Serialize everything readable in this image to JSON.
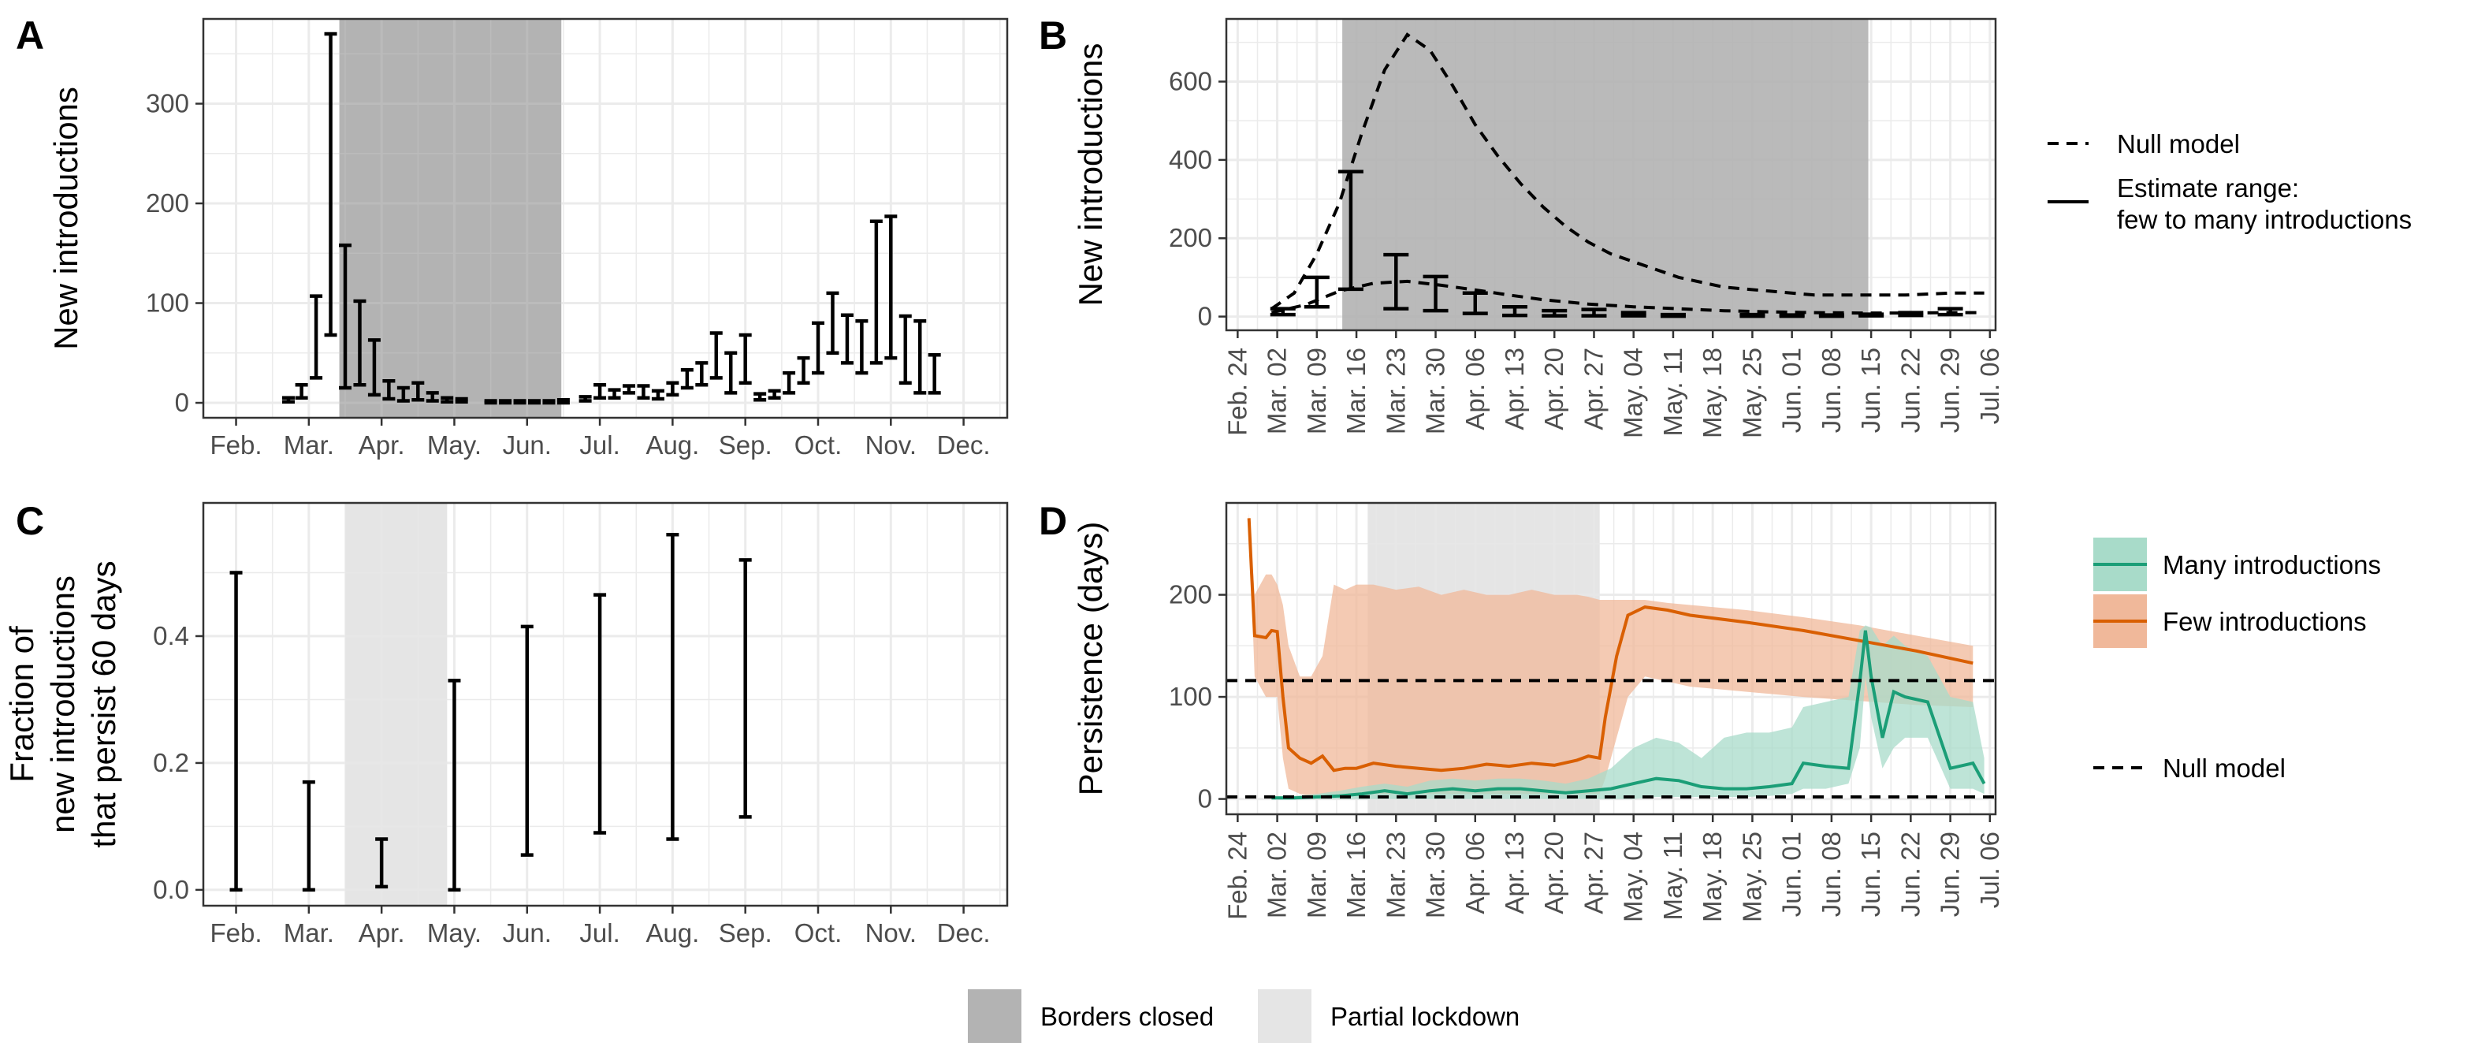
{
  "colors": {
    "borders_closed": "#b3b3b3",
    "partial_lockdown": "#e5e5e5",
    "many": "#1b9e77",
    "few": "#d95f02",
    "many_band": "#a8dbc9",
    "few_band": "#f0b89a",
    "grid": "#ebebeb",
    "ink": "#000000"
  },
  "panels": {
    "A": {
      "letter": "A"
    },
    "B": {
      "letter": "B"
    },
    "C": {
      "letter": "C"
    },
    "D": {
      "letter": "D"
    }
  },
  "legend_top": {
    "null_model": "Null model",
    "estimate_line1": "Estimate range:",
    "estimate_line2": "few to many introductions"
  },
  "legend_mid": {
    "many": "Many introductions",
    "few": "Few introductions",
    "null_model": "Null model"
  },
  "legend_bottom": {
    "borders_closed": "Borders closed",
    "partial_lockdown": "Partial lockdown"
  },
  "chart_data": [
    {
      "panel": "A",
      "type": "errorbar",
      "ylabel": "New introductions",
      "xlabel": "",
      "month_ticks": [
        "Feb.",
        "Mar.",
        "Apr.",
        "May.",
        "Jun.",
        "Jul.",
        "Aug.",
        "Sep.",
        "Oct.",
        "Nov.",
        "Dec."
      ],
      "y_ticks": [
        0,
        100,
        200,
        300
      ],
      "xlim_month": [
        0.55,
        11.6
      ],
      "ylim": [
        -15,
        385
      ],
      "grid": true,
      "shaded": [
        {
          "type": "borders_closed",
          "from": 2.42,
          "to": 5.47
        }
      ],
      "ranges": [
        [
          1.72,
          1,
          5
        ],
        [
          1.9,
          5,
          18
        ],
        [
          2.1,
          25,
          107
        ],
        [
          2.3,
          68,
          370
        ],
        [
          2.5,
          15,
          158
        ],
        [
          2.7,
          18,
          102
        ],
        [
          2.9,
          8,
          63
        ],
        [
          3.1,
          4,
          22
        ],
        [
          3.3,
          2,
          15
        ],
        [
          3.5,
          3,
          20
        ],
        [
          3.7,
          2,
          10
        ],
        [
          3.9,
          1,
          5
        ],
        [
          4.1,
          1,
          4
        ],
        [
          4.5,
          0,
          2
        ],
        [
          4.7,
          0,
          2
        ],
        [
          4.9,
          0,
          2
        ],
        [
          5.1,
          0,
          2
        ],
        [
          5.3,
          0,
          2
        ],
        [
          5.5,
          0,
          3
        ],
        [
          5.8,
          2,
          6
        ],
        [
          6.0,
          5,
          18
        ],
        [
          6.2,
          5,
          13
        ],
        [
          6.4,
          10,
          17
        ],
        [
          6.6,
          5,
          17
        ],
        [
          6.8,
          4,
          12
        ],
        [
          7.0,
          8,
          20
        ],
        [
          7.2,
          15,
          33
        ],
        [
          7.4,
          18,
          40
        ],
        [
          7.6,
          25,
          70
        ],
        [
          7.8,
          10,
          50
        ],
        [
          8.0,
          20,
          68
        ],
        [
          8.2,
          3,
          9
        ],
        [
          8.4,
          5,
          12
        ],
        [
          8.6,
          10,
          30
        ],
        [
          8.8,
          20,
          45
        ],
        [
          9.0,
          30,
          80
        ],
        [
          9.2,
          50,
          110
        ],
        [
          9.4,
          40,
          88
        ],
        [
          9.6,
          30,
          82
        ],
        [
          9.8,
          40,
          182
        ],
        [
          10.0,
          45,
          187
        ],
        [
          10.2,
          20,
          87
        ],
        [
          10.4,
          10,
          82
        ],
        [
          10.6,
          10,
          48
        ]
      ]
    },
    {
      "panel": "B",
      "type": "line+errorbar",
      "ylabel": "New introductions",
      "xlabel": "",
      "week_ticks": [
        "Feb. 24",
        "Mar. 02",
        "Mar. 09",
        "Mar. 16",
        "Mar. 23",
        "Mar. 30",
        "Apr. 06",
        "Apr. 13",
        "Apr. 20",
        "Apr. 27",
        "May. 04",
        "May. 11",
        "May. 18",
        "May. 25",
        "Jun. 01",
        "Jun. 08",
        "Jun. 15",
        "Jun. 22",
        "Jun. 29",
        "Jul. 06"
      ],
      "y_ticks": [
        0,
        200,
        400,
        600
      ],
      "xlim_day": [
        -2,
        134
      ],
      "ylim": [
        -35,
        760
      ],
      "grid": true,
      "shaded": [
        {
          "type": "borders_closed",
          "from": 18.5,
          "to": 111.5
        }
      ],
      "null_model_series": [
        {
          "name": "Null model",
          "day": [
            6,
            10,
            14,
            18,
            22,
            26,
            30,
            34,
            38,
            42,
            46,
            50,
            54,
            58,
            62,
            66,
            70,
            78,
            86,
            94,
            102,
            110,
            118,
            126,
            132
          ],
          "value": [
            20,
            60,
            160,
            290,
            470,
            630,
            720,
            680,
            590,
            490,
            410,
            340,
            280,
            230,
            190,
            160,
            140,
            100,
            75,
            65,
            55,
            55,
            55,
            60,
            60
          ]
        },
        {
          "name": "Null model",
          "day": [
            6,
            12,
            18,
            24,
            30,
            36,
            42,
            48,
            54,
            62,
            70,
            78,
            86,
            94,
            102,
            110,
            118,
            126,
            132
          ],
          "value": [
            10,
            30,
            65,
            85,
            90,
            80,
            68,
            55,
            43,
            32,
            25,
            20,
            15,
            12,
            10,
            9,
            9,
            10,
            10
          ]
        }
      ],
      "ranges": [
        [
          8,
          5,
          20
        ],
        [
          14,
          25,
          100
        ],
        [
          20,
          70,
          370
        ],
        [
          28,
          20,
          158
        ],
        [
          35,
          15,
          102
        ],
        [
          42,
          8,
          60
        ],
        [
          49,
          3,
          25
        ],
        [
          56,
          2,
          15
        ],
        [
          63,
          2,
          18
        ],
        [
          70,
          2,
          10
        ],
        [
          77,
          1,
          5
        ],
        [
          91,
          1,
          5
        ],
        [
          98,
          1,
          4
        ],
        [
          105,
          1,
          4
        ],
        [
          112,
          2,
          6
        ],
        [
          119,
          3,
          10
        ],
        [
          126,
          5,
          20
        ]
      ]
    },
    {
      "panel": "C",
      "type": "errorbar",
      "ylabel_lines": [
        "Fraction of",
        "new introductions",
        "that persist 60 days"
      ],
      "xlabel": "",
      "month_ticks": [
        "Feb.",
        "Mar.",
        "Apr.",
        "May.",
        "Jun.",
        "Jul.",
        "Aug.",
        "Sep.",
        "Oct.",
        "Nov.",
        "Dec."
      ],
      "y_ticks": [
        "0.0",
        "0.2",
        "0.4"
      ],
      "xlim_month": [
        0.55,
        11.6
      ],
      "ylim": [
        -0.025,
        0.61
      ],
      "grid": true,
      "shaded": [
        {
          "type": "partial_lockdown",
          "from": 2.5,
          "to": 3.9
        }
      ],
      "ranges": [
        [
          1,
          0.0,
          0.5
        ],
        [
          2,
          0.0,
          0.17
        ],
        [
          3,
          0.005,
          0.08
        ],
        [
          4,
          0.0,
          0.33
        ],
        [
          5,
          0.055,
          0.415
        ],
        [
          6,
          0.09,
          0.465
        ],
        [
          7,
          0.08,
          0.56
        ],
        [
          8,
          0.115,
          0.52
        ]
      ]
    },
    {
      "panel": "D",
      "type": "line+area",
      "ylabel": "Persistence (days)",
      "xlabel": "",
      "week_ticks": [
        "Feb. 24",
        "Mar. 02",
        "Mar. 09",
        "Mar. 16",
        "Mar. 23",
        "Mar. 30",
        "Apr. 06",
        "Apr. 13",
        "Apr. 20",
        "Apr. 27",
        "May. 04",
        "May. 11",
        "May. 18",
        "May. 25",
        "Jun. 01",
        "Jun. 08",
        "Jun. 15",
        "Jun. 22",
        "Jun. 29",
        "Jul. 06"
      ],
      "y_ticks": [
        0,
        100,
        200
      ],
      "xlim_day": [
        -2,
        134
      ],
      "ylim": [
        -15,
        290
      ],
      "grid": true,
      "shaded": [
        {
          "type": "partial_lockdown",
          "from": 23,
          "to": 64
        }
      ],
      "null_model_levels": [
        116,
        2
      ],
      "series": [
        {
          "name": "Few introductions",
          "day": [
            2,
            3,
            5,
            6,
            7,
            8,
            9,
            11,
            13,
            15,
            17,
            19,
            21,
            24,
            28,
            32,
            36,
            40,
            44,
            48,
            52,
            56,
            60,
            62,
            64,
            65,
            67,
            69,
            72,
            76,
            80,
            90,
            100,
            110,
            120,
            130
          ],
          "value": [
            275,
            160,
            158,
            165,
            164,
            100,
            50,
            40,
            35,
            42,
            28,
            30,
            30,
            35,
            32,
            30,
            28,
            30,
            34,
            32,
            35,
            33,
            38,
            42,
            40,
            80,
            140,
            180,
            188,
            185,
            180,
            173,
            165,
            155,
            145,
            133
          ],
          "band_low": [
            270,
            120,
            100,
            100,
            100,
            40,
            10,
            5,
            3,
            5,
            5,
            5,
            5,
            5,
            5,
            5,
            5,
            5,
            5,
            5,
            5,
            5,
            5,
            5,
            5,
            20,
            60,
            100,
            120,
            115,
            110,
            105,
            100,
            96,
            92,
            90
          ],
          "band_high": [
            280,
            200,
            220,
            220,
            210,
            190,
            150,
            120,
            120,
            140,
            210,
            205,
            210,
            210,
            205,
            208,
            200,
            205,
            200,
            200,
            205,
            200,
            200,
            198,
            195,
            195,
            195,
            195,
            195,
            192,
            190,
            185,
            178,
            170,
            160,
            150
          ]
        },
        {
          "name": "Many introductions",
          "day": [
            6,
            10,
            14,
            18,
            22,
            26,
            30,
            34,
            38,
            42,
            46,
            50,
            54,
            58,
            62,
            66,
            70,
            74,
            78,
            82,
            86,
            90,
            94,
            98,
            100,
            104,
            108,
            110,
            111,
            112,
            114,
            116,
            118,
            122,
            126,
            130,
            132
          ],
          "value": [
            1,
            1,
            2,
            3,
            5,
            8,
            5,
            8,
            10,
            8,
            10,
            10,
            8,
            6,
            8,
            10,
            15,
            20,
            18,
            12,
            10,
            10,
            12,
            15,
            35,
            32,
            30,
            115,
            165,
            120,
            60,
            105,
            100,
            95,
            30,
            35,
            15
          ],
          "band_low": [
            0,
            0,
            0,
            0,
            0,
            0,
            0,
            0,
            0,
            0,
            0,
            0,
            0,
            0,
            0,
            0,
            0,
            2,
            2,
            2,
            2,
            2,
            3,
            5,
            10,
            10,
            15,
            50,
            120,
            80,
            30,
            50,
            60,
            60,
            10,
            10,
            5
          ],
          "band_high": [
            3,
            3,
            5,
            8,
            12,
            15,
            12,
            18,
            20,
            18,
            20,
            20,
            18,
            15,
            20,
            30,
            50,
            60,
            55,
            40,
            60,
            65,
            65,
            70,
            90,
            95,
            100,
            165,
            170,
            168,
            150,
            160,
            150,
            140,
            100,
            95,
            40
          ]
        }
      ]
    }
  ]
}
